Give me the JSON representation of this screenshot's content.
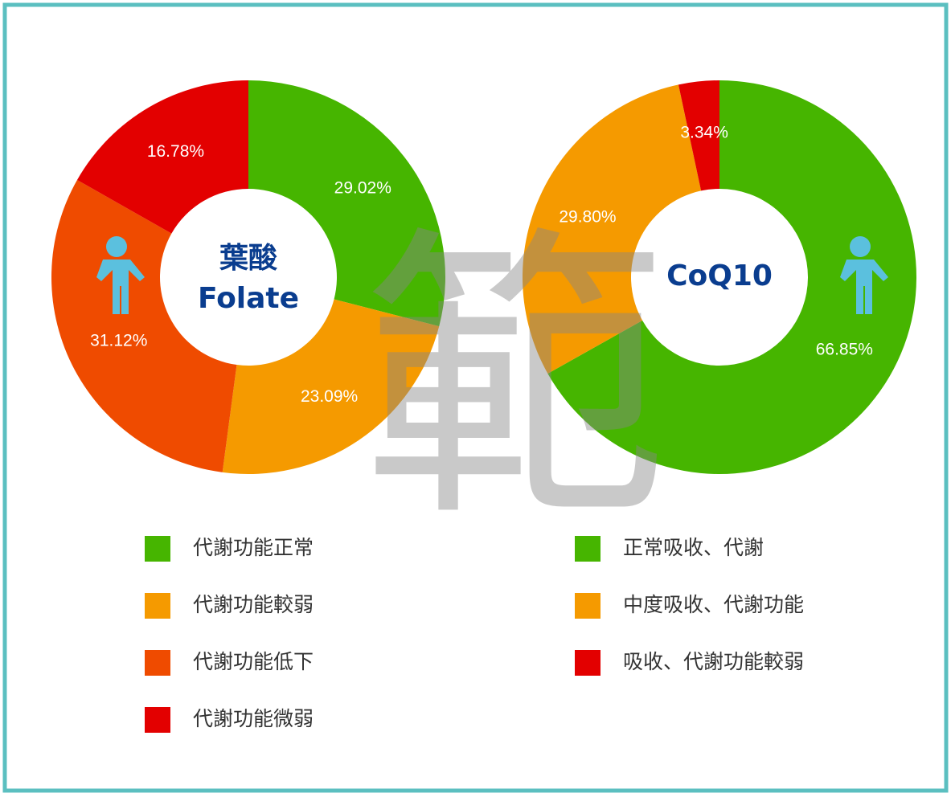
{
  "chart_data": [
    {
      "type": "pie",
      "title": "葉酸",
      "subtitle": "Folate",
      "categories": [
        "代謝功能正常",
        "代謝功能較弱",
        "代謝功能低下",
        "代謝功能微弱"
      ],
      "values": [
        29.02,
        23.09,
        31.12,
        16.78
      ],
      "value_labels": [
        "29.02%",
        "23.09%",
        "31.12%",
        "16.78%"
      ],
      "colors": [
        "#46b500",
        "#f59a00",
        "#ef4b00",
        "#e30000"
      ]
    },
    {
      "type": "pie",
      "title": "CoQ10",
      "categories": [
        "正常吸收、代謝",
        "中度吸收、代謝功能",
        "吸收、代謝功能較弱"
      ],
      "values": [
        66.85,
        29.8,
        3.34
      ],
      "value_labels": [
        "66.85%",
        "29.80%",
        "3.34%"
      ],
      "colors": [
        "#46b500",
        "#f59a00",
        "#e30000"
      ]
    }
  ],
  "watermark": "範"
}
